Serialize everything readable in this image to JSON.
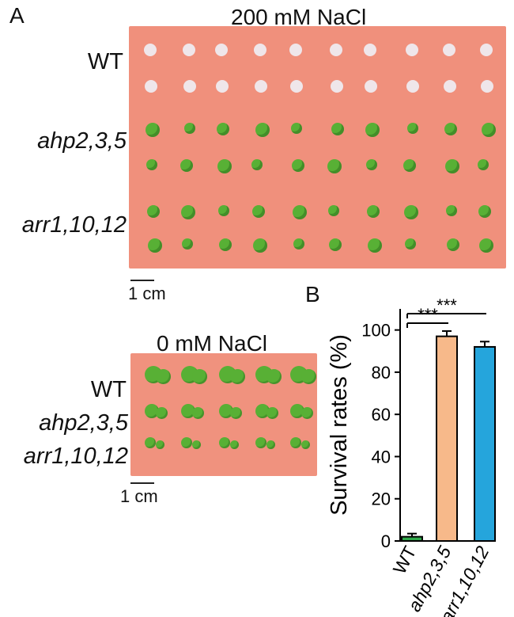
{
  "panel_a": {
    "letter": "A",
    "top_title": "200 mM NaCl",
    "bottom_title": "0 mM NaCl",
    "labels": [
      "WT",
      "ahp2,3,5",
      "arr1,10,12"
    ],
    "scale_label": "1 cm",
    "colors": {
      "plate": "#f0907c",
      "bleached": "#efe6ea",
      "green": "#58b035"
    }
  },
  "panel_b": {
    "letter": "B"
  },
  "chart_data": {
    "type": "bar",
    "categories": [
      "WT",
      "ahp2,3,5",
      "arr1,10,12"
    ],
    "values": [
      2,
      97,
      92
    ],
    "errors": [
      1.5,
      2.5,
      2.5
    ],
    "colors": [
      "#2fa84a",
      "#f7b98a",
      "#25a5dc"
    ],
    "ylabel": "Survival rates (%)",
    "xlabel": "",
    "ylim": [
      0,
      110
    ],
    "yticks": [
      0,
      20,
      40,
      60,
      80,
      100
    ],
    "grid": false,
    "significance": [
      {
        "from": "WT",
        "to": "ahp2,3,5",
        "label": "***"
      },
      {
        "from": "WT",
        "to": "arr1,10,12",
        "label": "***"
      }
    ]
  }
}
